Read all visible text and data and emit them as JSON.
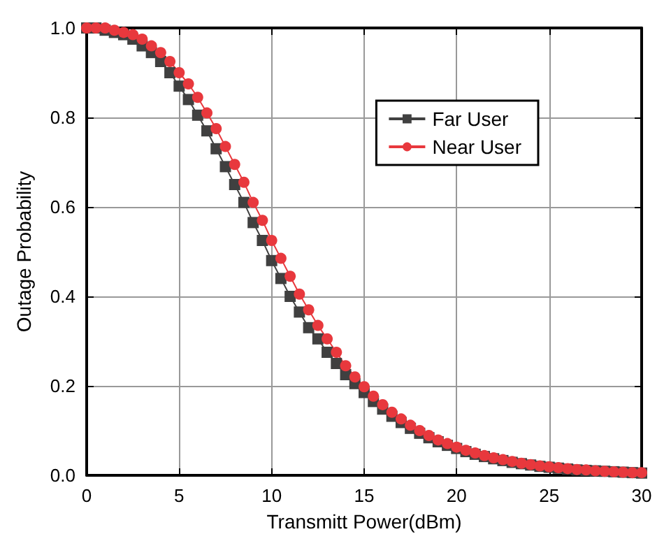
{
  "chart_data": {
    "type": "line",
    "xlabel": "Transmitt Power(dBm)",
    "ylabel": "Outage Probability",
    "x": [
      0,
      0.5,
      1,
      1.5,
      2,
      2.5,
      3,
      3.5,
      4,
      4.5,
      5,
      5.5,
      6,
      6.5,
      7,
      7.5,
      8,
      8.5,
      9,
      9.5,
      10,
      10.5,
      11,
      11.5,
      12,
      12.5,
      13,
      13.5,
      14,
      14.5,
      15,
      15.5,
      16,
      16.5,
      17,
      17.5,
      18,
      18.5,
      19,
      19.5,
      20,
      20.5,
      21,
      21.5,
      22,
      22.5,
      23,
      23.5,
      24,
      24.5,
      25,
      25.5,
      26,
      26.5,
      27,
      27.5,
      28,
      28.5,
      29,
      29.5,
      30
    ],
    "series": [
      {
        "name": "Far User",
        "color": "#404040",
        "marker": "square",
        "values": [
          1.0,
          1.0,
          0.995,
          0.99,
          0.985,
          0.975,
          0.96,
          0.945,
          0.925,
          0.9,
          0.87,
          0.84,
          0.805,
          0.77,
          0.73,
          0.69,
          0.65,
          0.61,
          0.565,
          0.525,
          0.48,
          0.44,
          0.4,
          0.365,
          0.33,
          0.305,
          0.275,
          0.25,
          0.225,
          0.205,
          0.185,
          0.165,
          0.148,
          0.132,
          0.118,
          0.105,
          0.094,
          0.084,
          0.075,
          0.067,
          0.06,
          0.053,
          0.047,
          0.042,
          0.037,
          0.033,
          0.029,
          0.026,
          0.023,
          0.02,
          0.018,
          0.016,
          0.014,
          0.012,
          0.011,
          0.01,
          0.009,
          0.008,
          0.007,
          0.006,
          0.005
        ]
      },
      {
        "name": "Near User",
        "color": "#e8383d",
        "marker": "circle",
        "values": [
          1.0,
          1.0,
          1.0,
          0.995,
          0.99,
          0.985,
          0.975,
          0.96,
          0.945,
          0.925,
          0.9,
          0.875,
          0.845,
          0.81,
          0.775,
          0.735,
          0.695,
          0.655,
          0.61,
          0.57,
          0.525,
          0.485,
          0.445,
          0.405,
          0.37,
          0.335,
          0.305,
          0.275,
          0.245,
          0.22,
          0.198,
          0.177,
          0.158,
          0.141,
          0.126,
          0.112,
          0.1,
          0.089,
          0.079,
          0.071,
          0.063,
          0.056,
          0.05,
          0.044,
          0.039,
          0.035,
          0.031,
          0.027,
          0.024,
          0.021,
          0.019,
          0.017,
          0.015,
          0.013,
          0.012,
          0.01,
          0.009,
          0.008,
          0.007,
          0.006,
          0.006
        ]
      }
    ],
    "xlim": [
      0,
      30
    ],
    "xticks": [
      0,
      5,
      10,
      15,
      20,
      25,
      30
    ],
    "ylim": [
      0,
      1
    ],
    "yticks": [
      {
        "value": 0,
        "label": "0.0"
      },
      {
        "value": 0.2,
        "label": "0.2"
      },
      {
        "value": 0.4,
        "label": "0.4"
      },
      {
        "value": 0.6,
        "label": "0.6"
      },
      {
        "value": 0.8,
        "label": "0.8"
      },
      {
        "value": 1,
        "label": "1.0"
      }
    ],
    "grid": true,
    "legend": "top right",
    "line_style": "solid"
  }
}
